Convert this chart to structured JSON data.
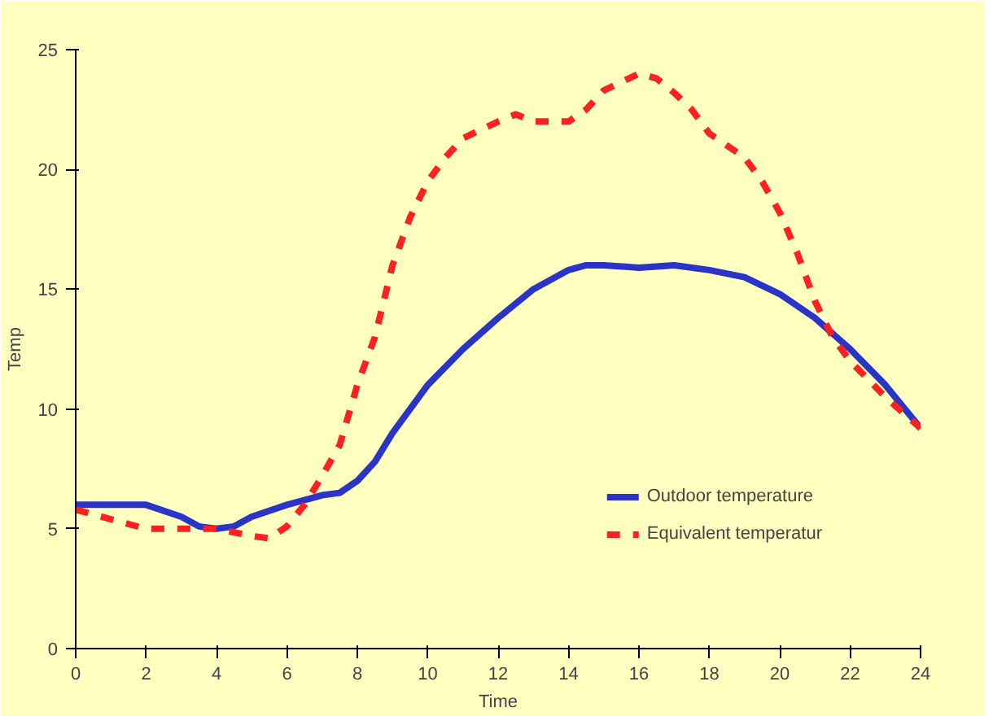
{
  "chart_data": {
    "type": "line",
    "xlabel": "Time",
    "ylabel": "Temp",
    "xlim": [
      0,
      24
    ],
    "ylim": [
      0,
      25
    ],
    "xticks": [
      0,
      2,
      4,
      6,
      8,
      10,
      12,
      14,
      16,
      18,
      20,
      22,
      24
    ],
    "yticks": [
      0,
      5,
      10,
      15,
      20,
      25
    ],
    "grid": false,
    "legend": "bottom right",
    "series": [
      {
        "name": "Outdoor temperature",
        "color": "#2a35c8",
        "line_style": "solid",
        "x": [
          0,
          1,
          2,
          3,
          3.5,
          4,
          4.5,
          5,
          6,
          7,
          7.5,
          8,
          8.5,
          9,
          9.5,
          10,
          11,
          12,
          13,
          14,
          14.5,
          15,
          16,
          17,
          18,
          19,
          20,
          21,
          22,
          23,
          24
        ],
        "values": [
          6,
          6,
          6,
          5.5,
          5.1,
          5,
          5.1,
          5.5,
          6,
          6.4,
          6.5,
          7,
          7.8,
          9,
          10,
          11,
          12.5,
          13.8,
          15,
          15.8,
          16,
          16,
          15.9,
          16,
          15.8,
          15.5,
          14.8,
          13.8,
          12.5,
          11,
          9.2
        ]
      },
      {
        "name": "Equivalent temperatur",
        "color": "#ff2020",
        "line_style": "dashed",
        "x": [
          0,
          1,
          2,
          3,
          4,
          5,
          5.5,
          6,
          6.5,
          7,
          7.5,
          8,
          8.5,
          9,
          9.5,
          10,
          10.5,
          11,
          12,
          12.5,
          13,
          14,
          14.5,
          15,
          16,
          16.5,
          17,
          17.5,
          18,
          19,
          19.5,
          20,
          20.5,
          21,
          21.5,
          22,
          23,
          24
        ],
        "values": [
          5.8,
          5.4,
          5,
          5,
          5,
          4.7,
          4.6,
          5.1,
          6,
          7.2,
          8.5,
          11,
          13,
          16,
          18,
          19.5,
          20.5,
          21.3,
          22,
          22.3,
          22,
          22,
          22.5,
          23.3,
          24,
          23.8,
          23.2,
          22.5,
          21.5,
          20.5,
          19.5,
          18.2,
          16.5,
          14.5,
          13,
          12,
          10.5,
          9.2
        ]
      }
    ]
  }
}
